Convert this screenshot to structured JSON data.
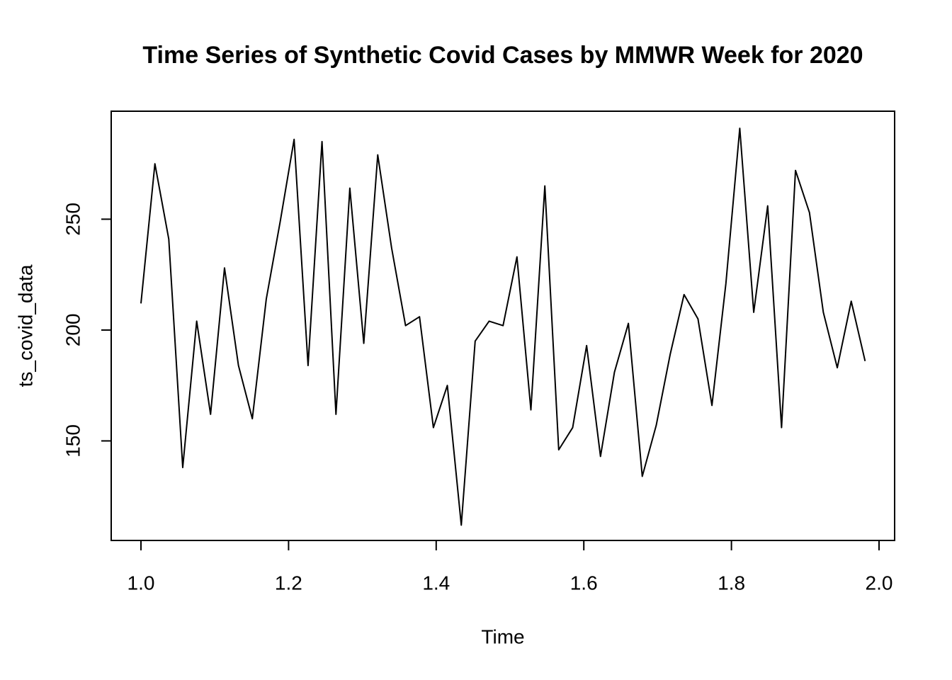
{
  "chart_data": {
    "type": "line",
    "title": "Time Series of Synthetic Covid Cases by MMWR Week for 2020",
    "x_label": "Time",
    "y_label": "ts_covid_data",
    "x": [
      1,
      1.0189,
      1.0377,
      1.0566,
      1.0755,
      1.0943,
      1.1132,
      1.1321,
      1.1509,
      1.1698,
      1.1887,
      1.2075,
      1.2264,
      1.2453,
      1.2642,
      1.283,
      1.3019,
      1.3208,
      1.3396,
      1.3585,
      1.3774,
      1.3962,
      1.4151,
      1.434,
      1.4528,
      1.4717,
      1.4906,
      1.5094,
      1.5283,
      1.5472,
      1.566,
      1.5849,
      1.6038,
      1.6226,
      1.6415,
      1.6604,
      1.6792,
      1.6981,
      1.717,
      1.7358,
      1.7547,
      1.7736,
      1.7925,
      1.8113,
      1.8302,
      1.8491,
      1.8679,
      1.8868,
      1.9057,
      1.9245,
      1.9434,
      1.9623,
      1.9811
    ],
    "series": [
      {
        "name": "ts_covid_data",
        "color": "#000000",
        "values": [
          212,
          275,
          241,
          138,
          204,
          162,
          228,
          184,
          160,
          214,
          249,
          286,
          184,
          285,
          162,
          264,
          194,
          279,
          237,
          202,
          206,
          156,
          175,
          112,
          195,
          204,
          202,
          233,
          164,
          265,
          146,
          156,
          193,
          143,
          181,
          203,
          134,
          157,
          189,
          216,
          205,
          166,
          221,
          291,
          208,
          256,
          156,
          272,
          253,
          208,
          183,
          213,
          186
        ]
      }
    ],
    "xlim": [
      0.9597,
      2.0211
    ],
    "ylim": [
      105.1,
      298.7
    ],
    "xticks": [
      {
        "value": 1,
        "label": "1.0"
      },
      1.2,
      1.4,
      1.6,
      1.8,
      {
        "value": 2,
        "label": "2.0"
      }
    ],
    "yticks": [
      150,
      200,
      250
    ],
    "grid": false
  }
}
